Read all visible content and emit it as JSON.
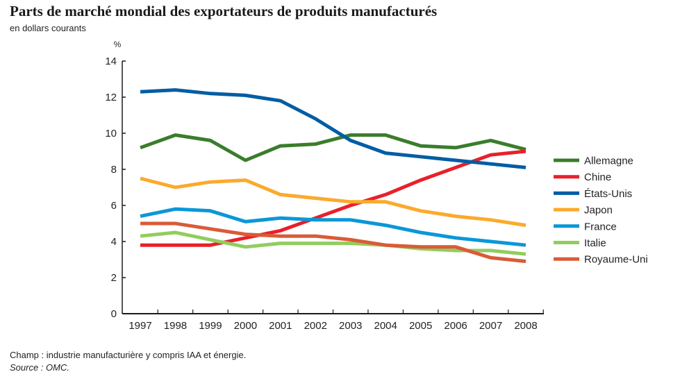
{
  "header": {
    "title": "Parts de marché mondial des exportateurs de produits manufacturés",
    "subtitle": "en dollars courants"
  },
  "footer": {
    "scope": "Champ : industrie manufacturière y compris IAA et énergie.",
    "source": "Source : OMC."
  },
  "chart_data": {
    "type": "line",
    "title": "Parts de marché mondial des exportateurs de produits manufacturés",
    "subtitle": "en dollars courants",
    "xlabel": "",
    "ylabel": "%",
    "ylim": [
      0,
      14
    ],
    "yticks": [
      0,
      2,
      4,
      6,
      8,
      10,
      12,
      14
    ],
    "grid": false,
    "legend_position": "right",
    "x": [
      "1997",
      "1998",
      "1999",
      "2000",
      "2001",
      "2002",
      "2003",
      "2004",
      "2005",
      "2006",
      "2007",
      "2008"
    ],
    "series": [
      {
        "name": "Allemagne",
        "color": "#3a7d2c",
        "values": [
          9.2,
          9.9,
          9.6,
          8.5,
          9.3,
          9.4,
          9.9,
          9.9,
          9.3,
          9.2,
          9.6,
          9.1
        ]
      },
      {
        "name": "Chine",
        "color": "#e8202a",
        "values": [
          3.8,
          3.8,
          3.8,
          4.2,
          4.6,
          5.3,
          6.0,
          6.6,
          7.4,
          8.1,
          8.8,
          9.0
        ]
      },
      {
        "name": "États-Unis",
        "color": "#005da4",
        "values": [
          12.3,
          12.4,
          12.2,
          12.1,
          11.8,
          10.8,
          9.6,
          8.9,
          8.7,
          8.5,
          8.3,
          8.1
        ]
      },
      {
        "name": "Japon",
        "color": "#fbaa2d",
        "values": [
          7.5,
          7.0,
          7.3,
          7.4,
          6.6,
          6.4,
          6.2,
          6.2,
          5.7,
          5.4,
          5.2,
          4.9
        ]
      },
      {
        "name": "France",
        "color": "#0b97d7",
        "values": [
          5.4,
          5.8,
          5.7,
          5.1,
          5.3,
          5.2,
          5.2,
          4.9,
          4.5,
          4.2,
          4.0,
          3.8
        ]
      },
      {
        "name": "Italie",
        "color": "#91cd5e",
        "values": [
          4.3,
          4.5,
          4.1,
          3.7,
          3.9,
          3.9,
          3.9,
          3.8,
          3.6,
          3.5,
          3.5,
          3.3
        ]
      },
      {
        "name": "Royaume-Uni",
        "color": "#d95b37",
        "values": [
          5.0,
          5.0,
          4.7,
          4.4,
          4.3,
          4.3,
          4.1,
          3.8,
          3.7,
          3.7,
          3.1,
          2.9
        ]
      }
    ]
  }
}
